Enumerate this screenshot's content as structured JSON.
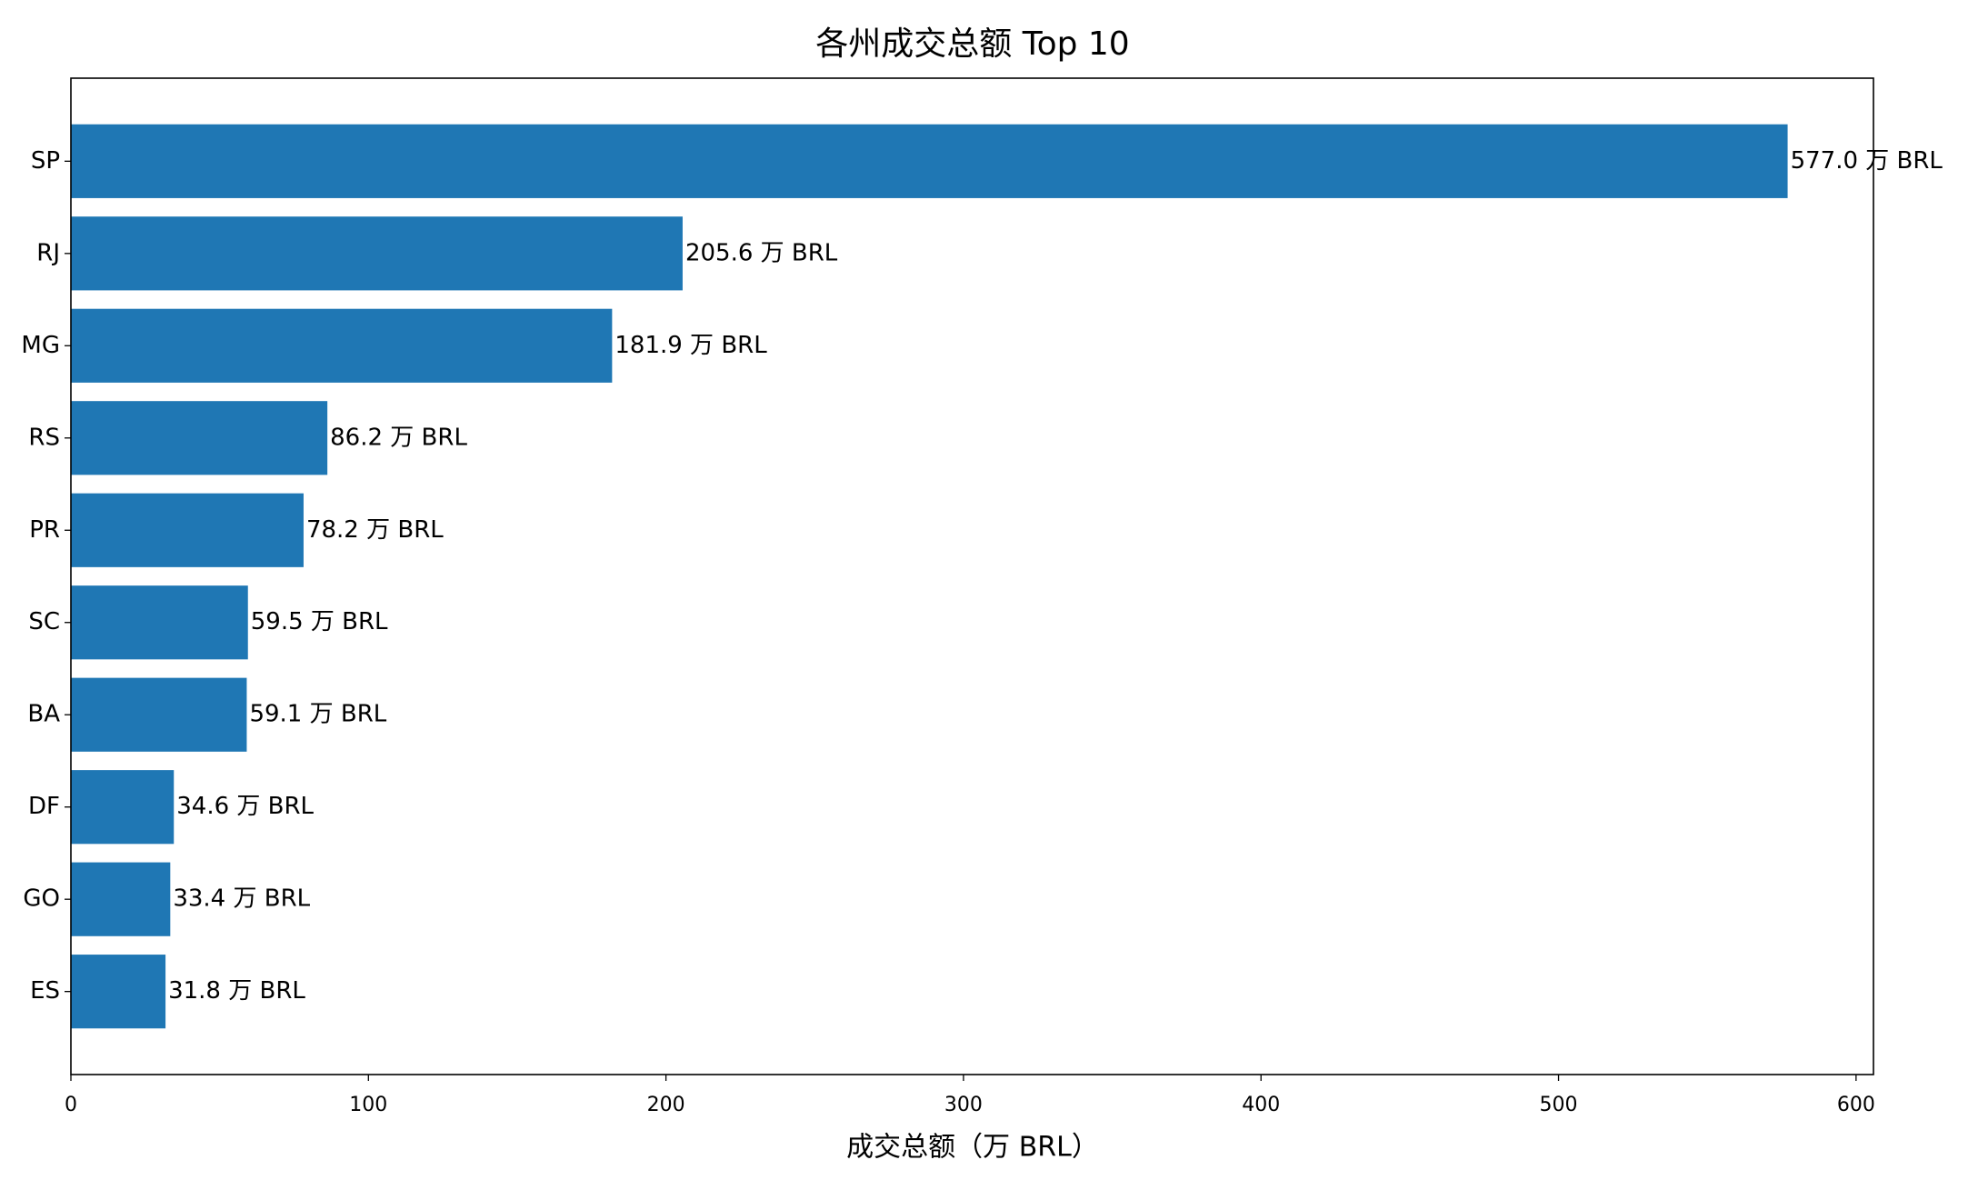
{
  "chart_data": {
    "type": "barh",
    "title": "各州成交总额 Top 10",
    "x_label": "成交总额（万 BRL）",
    "categories": [
      "SP",
      "RJ",
      "MG",
      "RS",
      "PR",
      "SC",
      "BA",
      "DF",
      "GO",
      "ES"
    ],
    "values": [
      577.0,
      205.6,
      181.9,
      86.2,
      78.2,
      59.5,
      59.1,
      34.6,
      33.4,
      31.8
    ],
    "value_labels": [
      "577.0 万 BRL",
      "205.6 万 BRL",
      "181.9 万 BRL",
      "86.2 万 BRL",
      "78.2 万 BRL",
      "59.5 万 BRL",
      "59.1 万 BRL",
      "34.6 万 BRL",
      "33.4 万 BRL",
      "31.8 万 BRL"
    ],
    "color": "#1f77b4",
    "xlim": [
      0,
      605.85
    ],
    "xticks": [
      0,
      100,
      200,
      300,
      400,
      500,
      600
    ],
    "grid": false
  }
}
